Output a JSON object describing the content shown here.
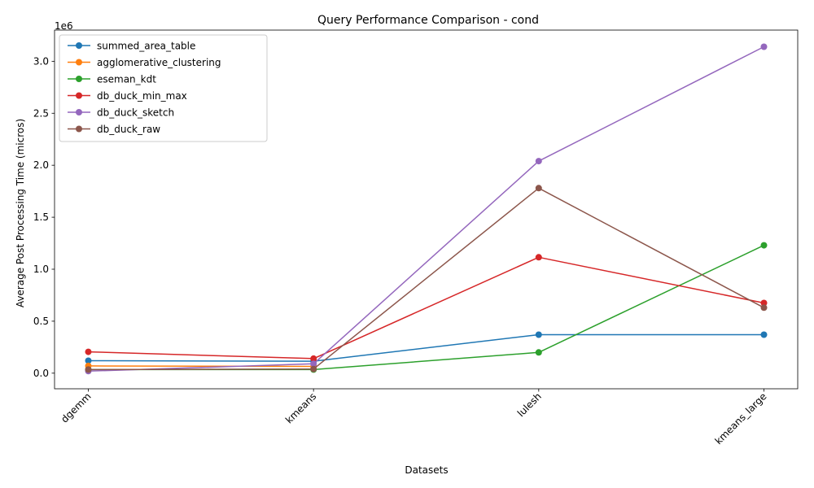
{
  "chart_data": {
    "type": "line",
    "title": "Query Performance Comparison - cond",
    "xlabel": "Datasets",
    "ylabel": "Average Post Processing Time (micros)",
    "y_offset_label": "1e6",
    "categories": [
      "dgemm",
      "kmeans",
      "lulesh",
      "kmeans_large"
    ],
    "ylim": [
      -150000,
      3300000
    ],
    "yticks": [
      0,
      500000,
      1000000,
      1500000,
      2000000,
      2500000,
      3000000
    ],
    "ytick_labels": [
      "0.0",
      "0.5",
      "1.0",
      "1.5",
      "2.0",
      "2.5",
      "3.0"
    ],
    "grid": false,
    "legend_position": "upper left",
    "series": [
      {
        "name": "summed_area_table",
        "color": "#1f77b4",
        "values": [
          120000,
          115000,
          370000,
          370000
        ]
      },
      {
        "name": "agglomerative_clustering",
        "color": "#ff7f0e",
        "values": [
          70000,
          65000,
          null,
          null
        ]
      },
      {
        "name": "eseman_kdt",
        "color": "#2ca02c",
        "values": [
          35000,
          35000,
          200000,
          1230000
        ]
      },
      {
        "name": "db_duck_min_max",
        "color": "#d62728",
        "values": [
          205000,
          140000,
          1115000,
          675000
        ]
      },
      {
        "name": "db_duck_sketch",
        "color": "#9467bd",
        "values": [
          20000,
          90000,
          2040000,
          3140000
        ]
      },
      {
        "name": "db_duck_raw",
        "color": "#8c564b",
        "values": [
          35000,
          40000,
          1780000,
          630000
        ]
      }
    ]
  }
}
